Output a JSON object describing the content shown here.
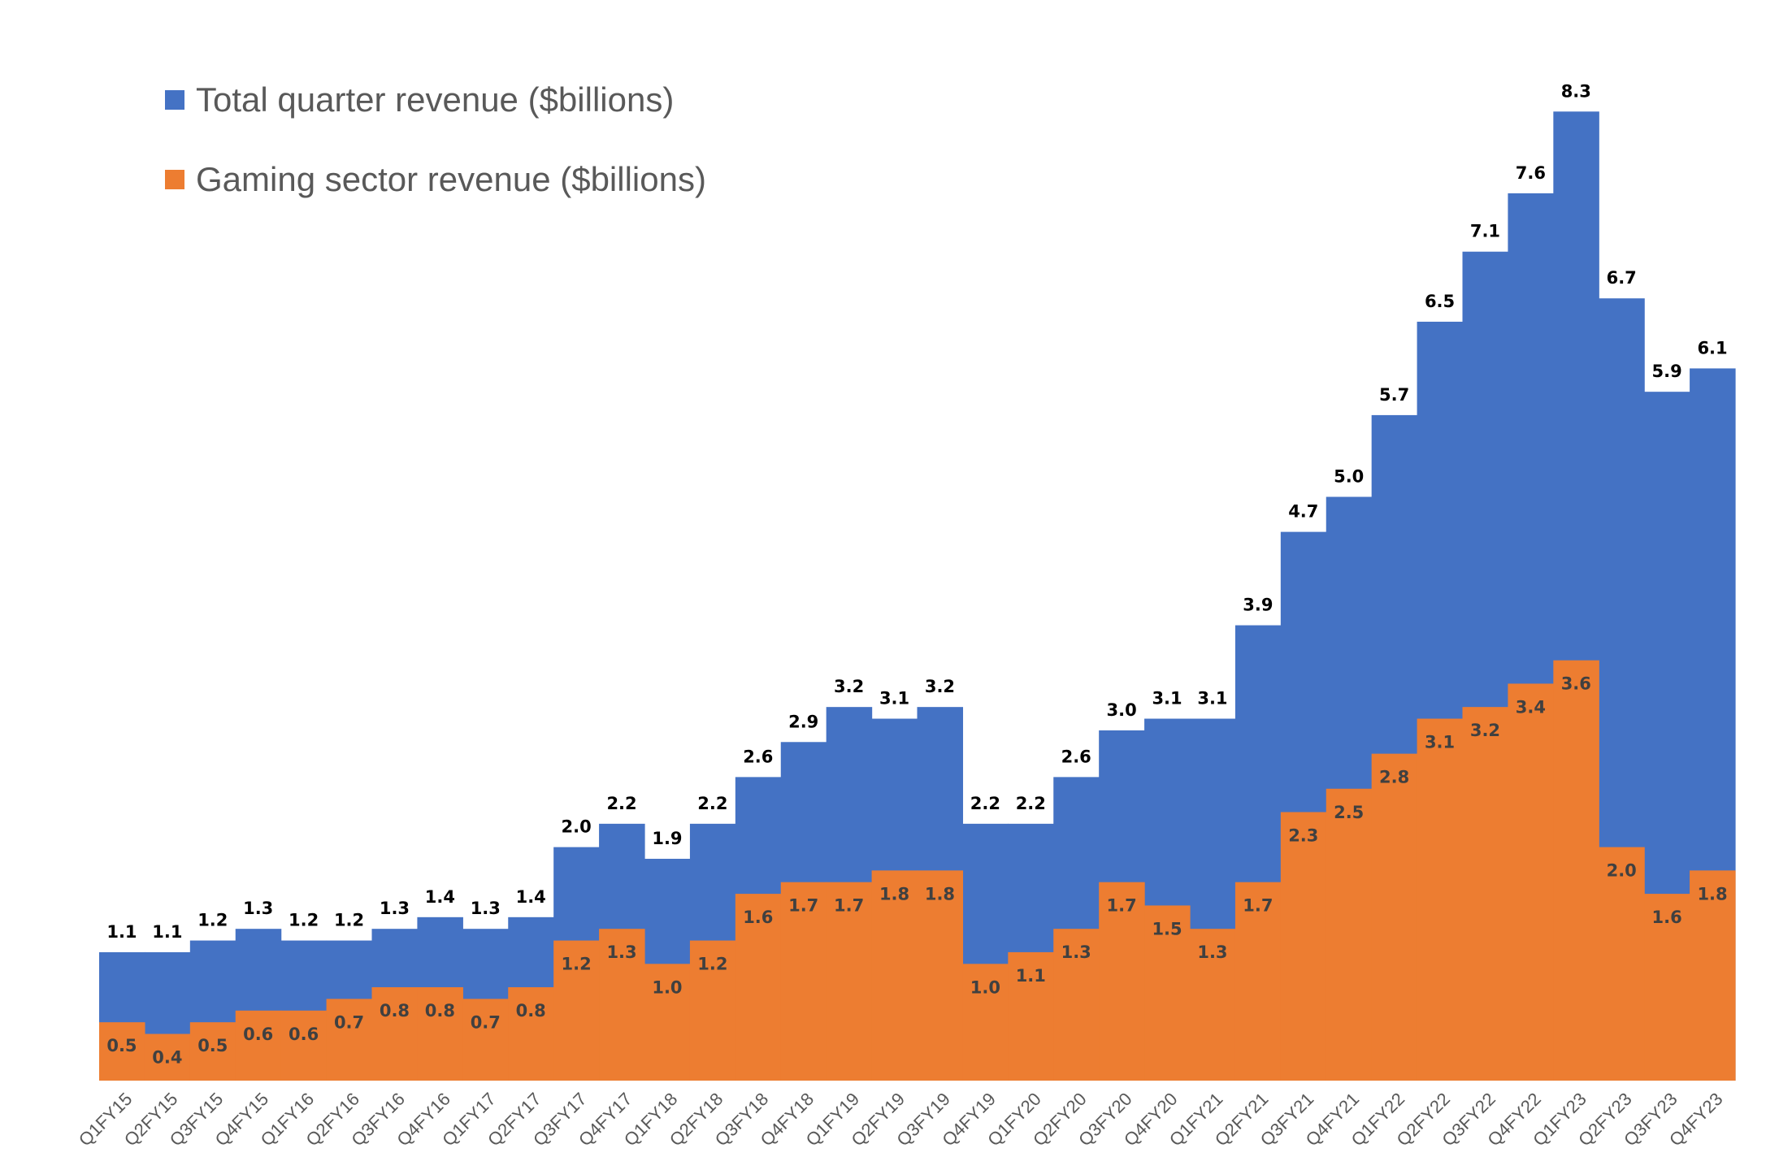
{
  "chart_data": {
    "type": "area",
    "style": "stepped, overlaid",
    "categories": [
      "Q1FY15",
      "Q2FY15",
      "Q3FY15",
      "Q4FY15",
      "Q1FY16",
      "Q2FY16",
      "Q3FY16",
      "Q4FY16",
      "Q1FY17",
      "Q2FY17",
      "Q3FY17",
      "Q4FY17",
      "Q1FY18",
      "Q2FY18",
      "Q3FY18",
      "Q4FY18",
      "Q1FY19",
      "Q2FY19",
      "Q3FY19",
      "Q4FY19",
      "Q1FY20",
      "Q2FY20",
      "Q3FY20",
      "Q4FY20",
      "Q1FY21",
      "Q2FY21",
      "Q3FY21",
      "Q4FY21",
      "Q1FY22",
      "Q2FY22",
      "Q3FY22",
      "Q4FY22",
      "Q1FY23",
      "Q2FY23",
      "Q3FY23",
      "Q4FY23"
    ],
    "series": [
      {
        "name": "Total quarter revenue ($billions)",
        "color": "#4472C4",
        "values": [
          1.1,
          1.1,
          1.2,
          1.3,
          1.2,
          1.2,
          1.3,
          1.4,
          1.3,
          1.4,
          2.0,
          2.2,
          1.9,
          2.2,
          2.6,
          2.9,
          3.2,
          3.1,
          3.2,
          2.2,
          2.2,
          2.6,
          3.0,
          3.1,
          3.1,
          3.9,
          4.7,
          5.0,
          5.7,
          6.5,
          7.1,
          7.6,
          8.3,
          6.7,
          5.9,
          6.1
        ],
        "labels": [
          "1.1",
          "1.1",
          "1.2",
          "1.3",
          "1.2",
          "1.2",
          "1.3",
          "1.4",
          "1.3",
          "1.4",
          "2.0",
          "2.2",
          "1.9",
          "2.2",
          "2.6",
          "2.9",
          "3.2",
          "3.1",
          "3.2",
          "2.2",
          "2.2",
          "2.6",
          "3.0",
          "3.1",
          "3.1",
          "3.9",
          "4.7",
          "5.0",
          "5.7",
          "6.5",
          "7.1",
          "7.6",
          "8.3",
          "6.7",
          "5.9",
          "6.1"
        ]
      },
      {
        "name": "Gaming sector revenue ($billions)",
        "color": "#ED7D31",
        "values": [
          0.5,
          0.4,
          0.5,
          0.6,
          0.6,
          0.7,
          0.8,
          0.8,
          0.7,
          0.8,
          1.2,
          1.3,
          1.0,
          1.2,
          1.6,
          1.7,
          1.7,
          1.8,
          1.8,
          1.0,
          1.1,
          1.3,
          1.7,
          1.5,
          1.3,
          1.7,
          2.3,
          2.5,
          2.8,
          3.1,
          3.2,
          3.4,
          3.6,
          2.0,
          1.6,
          1.8
        ],
        "labels": [
          "0.5",
          "0.4",
          "0.5",
          "0.6",
          "0.6",
          "0.7",
          "0.8",
          "0.8",
          "0.7",
          "0.8",
          "1.2",
          "1.3",
          "1.0",
          "1.2",
          "1.6",
          "1.7",
          "1.7",
          "1.8",
          "1.8",
          "1.0",
          "1.1",
          "1.3",
          "1.7",
          "1.5",
          "1.3",
          "1.7",
          "2.3",
          "2.5",
          "2.8",
          "3.1",
          "3.2",
          "3.4",
          "3.6",
          "2.0",
          "1.6",
          "1.8"
        ]
      }
    ],
    "title": "",
    "xlabel": "",
    "ylabel": "",
    "ylim": [
      0,
      8.5
    ],
    "grid": false,
    "legend": "top-left"
  }
}
